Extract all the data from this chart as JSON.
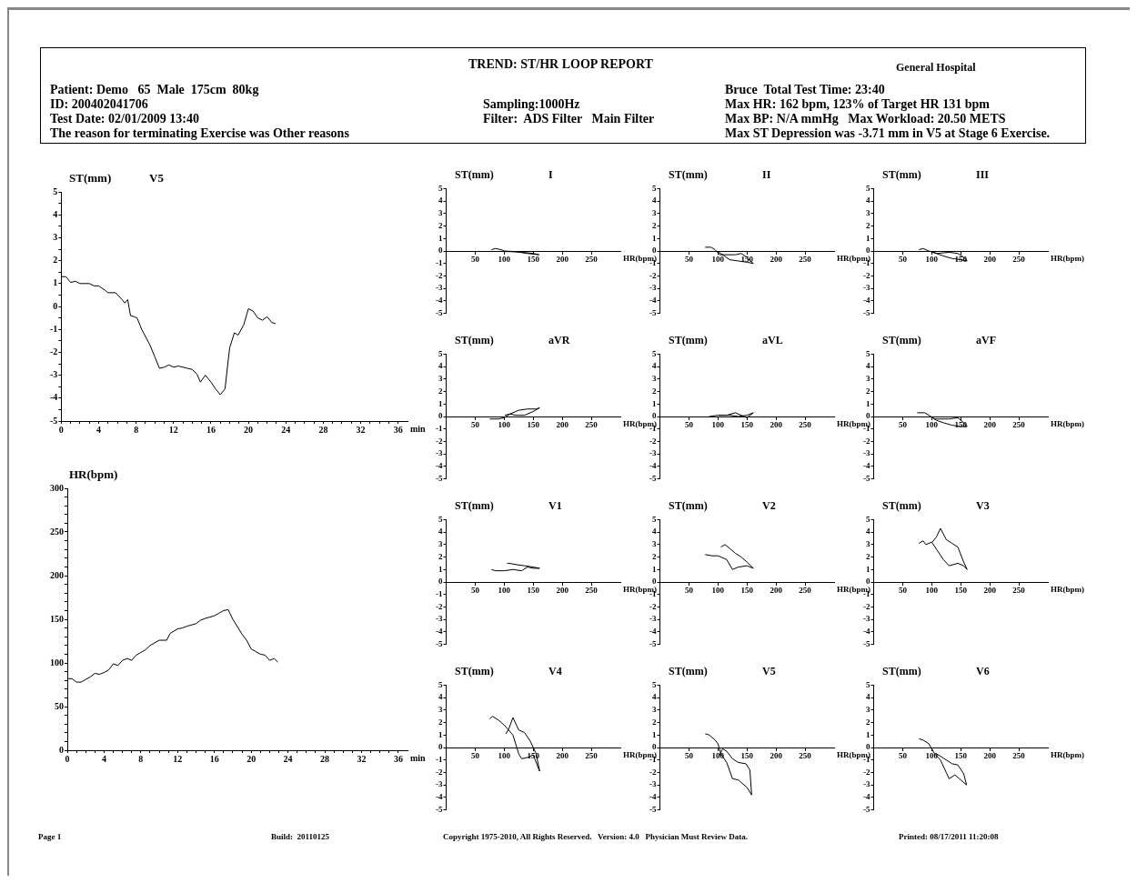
{
  "chart_data": [
    {
      "type": "other",
      "title": "TREND: ST/HR LOOP REPORT",
      "annotations": [
        "General Hospital",
        "Patient: Demo   65  Male  175cm  80kg",
        "ID: 200402041706",
        "Test Date: 02/01/2009 13:40",
        "The reason for terminating Exercise was Other reasons",
        "Sampling:1000Hz",
        "Filter:  ADS Filter   Main Filter",
        "Bruce  Total Test Time: 23:40",
        "Max HR: 162 bpm, 123% of Target HR 131 bpm",
        "Max BP: N/A mmHg   Max Workload: 20.50 METS",
        "Max ST Depression was -3.71 mm in V5 at Stage 6 Exercise."
      ]
    },
    {
      "type": "line",
      "title": "V5",
      "ylabel": "ST(mm)",
      "xlabel": "min",
      "xlim": [
        0,
        37
      ],
      "ylim": [
        -5,
        5
      ],
      "xticks": [
        0,
        {
          "value": 1,
          "label": null
        },
        {
          "value": 2,
          "label": null
        },
        {
          "value": 3,
          "label": null
        },
        4,
        {
          "value": 5,
          "label": null
        },
        {
          "value": 6,
          "label": null
        },
        {
          "value": 7,
          "label": null
        },
        8,
        {
          "value": 9,
          "label": null
        },
        {
          "value": 10,
          "label": null
        },
        {
          "value": 11,
          "label": null
        },
        12,
        {
          "value": 13,
          "label": null
        },
        {
          "value": 14,
          "label": null
        },
        {
          "value": 15,
          "label": null
        },
        16,
        {
          "value": 17,
          "label": null
        },
        {
          "value": 18,
          "label": null
        },
        {
          "value": 19,
          "label": null
        },
        20,
        {
          "value": 21,
          "label": null
        },
        {
          "value": 22,
          "label": null
        },
        {
          "value": 23,
          "label": null
        },
        24,
        {
          "value": 25,
          "label": null
        },
        {
          "value": 26,
          "label": null
        },
        {
          "value": 27,
          "label": null
        },
        28,
        {
          "value": 29,
          "label": null
        },
        {
          "value": 30,
          "label": null
        },
        {
          "value": 31,
          "label": null
        },
        32,
        {
          "value": 33,
          "label": null
        },
        {
          "value": 34,
          "label": null
        },
        {
          "value": 35,
          "label": null
        },
        36
      ],
      "yticks": [
        -5,
        {
          "value": -4.5,
          "label": null
        },
        -4,
        {
          "value": -3.5,
          "label": null
        },
        -3,
        {
          "value": -2.5,
          "label": null
        },
        -2,
        {
          "value": -1.5,
          "label": null
        },
        -1,
        {
          "value": -0.5,
          "label": null
        },
        0,
        {
          "value": 0.5,
          "label": null
        },
        1,
        {
          "value": 1.5,
          "label": null
        },
        2,
        {
          "value": 2.5,
          "label": null
        },
        3,
        {
          "value": 3.5,
          "label": null
        },
        4,
        {
          "value": 4.5,
          "label": null
        },
        5
      ],
      "series": [
        {
          "color": "#000000",
          "x": [
            0,
            0.5,
            1,
            1.5,
            2,
            3,
            3.5,
            4,
            4.7,
            5,
            5.8,
            6.5,
            6.8,
            7.1,
            7.4,
            7.8,
            8.1,
            8.6,
            9.5,
            10,
            10.5,
            11,
            11.5,
            12,
            12.5,
            13,
            13.5,
            14,
            14.5,
            14.87,
            15.4,
            16,
            16.5,
            17,
            17.5,
            17.8,
            18,
            18.5,
            18.9,
            19.5,
            20,
            20.5,
            21,
            21.5,
            22,
            22.5,
            22.9
          ],
          "values": [
            1.3,
            1.3,
            1.05,
            1.1,
            1.0,
            1.0,
            0.9,
            0.9,
            0.7,
            0.6,
            0.6,
            0.3,
            0.15,
            0.3,
            -0.4,
            -0.45,
            -0.5,
            -1.0,
            -1.7,
            -2.2,
            -2.7,
            -2.65,
            -2.55,
            -2.65,
            -2.6,
            -2.65,
            -2.7,
            -2.75,
            -2.95,
            -3.3,
            -3.0,
            -3.3,
            -3.6,
            -3.85,
            -3.6,
            -2.5,
            -1.8,
            -1.15,
            -1.25,
            -0.8,
            -0.1,
            -0.2,
            -0.5,
            -0.6,
            -0.45,
            -0.7,
            -0.75
          ]
        }
      ]
    },
    {
      "type": "line",
      "ylabel": "HR(bpm)",
      "xlabel": "min",
      "xlim": [
        0,
        37
      ],
      "ylim": [
        0,
        300
      ],
      "xticks": [
        0,
        {
          "value": 1,
          "label": null
        },
        {
          "value": 2,
          "label": null
        },
        {
          "value": 3,
          "label": null
        },
        4,
        {
          "value": 5,
          "label": null
        },
        {
          "value": 6,
          "label": null
        },
        {
          "value": 7,
          "label": null
        },
        8,
        {
          "value": 9,
          "label": null
        },
        {
          "value": 10,
          "label": null
        },
        {
          "value": 11,
          "label": null
        },
        12,
        {
          "value": 13,
          "label": null
        },
        {
          "value": 14,
          "label": null
        },
        {
          "value": 15,
          "label": null
        },
        16,
        {
          "value": 17,
          "label": null
        },
        {
          "value": 18,
          "label": null
        },
        {
          "value": 19,
          "label": null
        },
        20,
        {
          "value": 21,
          "label": null
        },
        {
          "value": 22,
          "label": null
        },
        {
          "value": 23,
          "label": null
        },
        24,
        {
          "value": 25,
          "label": null
        },
        {
          "value": 26,
          "label": null
        },
        {
          "value": 27,
          "label": null
        },
        28,
        {
          "value": 29,
          "label": null
        },
        {
          "value": 30,
          "label": null
        },
        {
          "value": 31,
          "label": null
        },
        32,
        {
          "value": 33,
          "label": null
        },
        {
          "value": 34,
          "label": null
        },
        {
          "value": 35,
          "label": null
        },
        36
      ],
      "yticks": [
        0,
        {
          "value": 10,
          "label": null
        },
        {
          "value": 20,
          "label": null
        },
        {
          "value": 30,
          "label": null
        },
        {
          "value": 40,
          "label": null
        },
        50,
        {
          "value": 60,
          "label": null
        },
        {
          "value": 70,
          "label": null
        },
        {
          "value": 80,
          "label": null
        },
        {
          "value": 90,
          "label": null
        },
        100,
        {
          "value": 110,
          "label": null
        },
        {
          "value": 120,
          "label": null
        },
        {
          "value": 130,
          "label": null
        },
        {
          "value": 140,
          "label": null
        },
        150,
        {
          "value": 160,
          "label": null
        },
        {
          "value": 170,
          "label": null
        },
        {
          "value": 180,
          "label": null
        },
        {
          "value": 190,
          "label": null
        },
        200,
        {
          "value": 210,
          "label": null
        },
        {
          "value": 220,
          "label": null
        },
        {
          "value": 230,
          "label": null
        },
        {
          "value": 240,
          "label": null
        },
        250,
        {
          "value": 260,
          "label": null
        },
        {
          "value": 270,
          "label": null
        },
        {
          "value": 280,
          "label": null
        },
        {
          "value": 290,
          "label": null
        },
        300
      ],
      "series": [
        {
          "color": "#000000",
          "x": [
            0,
            0.5,
            1,
            1.5,
            2,
            2.5,
            3,
            3.5,
            4,
            4.5,
            5,
            5.5,
            6,
            6.5,
            7,
            7.5,
            8,
            8.5,
            9,
            9.5,
            10,
            10.8,
            11.2,
            12,
            12.5,
            13,
            14,
            14.5,
            15,
            16,
            16.5,
            17,
            17.5,
            18,
            19,
            19.5,
            20,
            20.5,
            21,
            21.5,
            22,
            22.5,
            22.9
          ],
          "values": [
            82,
            82,
            78,
            78,
            81,
            84,
            88,
            87,
            89,
            92,
            99,
            97,
            103,
            105,
            103,
            109,
            112,
            115,
            120,
            123,
            126,
            126,
            134,
            139,
            140,
            142,
            145,
            149,
            151,
            154,
            157,
            160,
            161,
            150,
            133,
            126,
            116,
            113,
            110,
            109,
            103,
            105,
            101
          ]
        }
      ]
    },
    {
      "type": "line",
      "title": "I",
      "ylabel": "ST(mm)",
      "xlabel": "HR(bpm)",
      "xlim": [
        0,
        300
      ],
      "ylim": [
        -5,
        5
      ],
      "xticks": [
        50,
        100,
        150,
        200,
        250
      ],
      "yticks": [
        -5,
        -4,
        -3,
        -2,
        -1,
        0,
        1,
        2,
        3,
        4,
        5
      ],
      "series": [
        {
          "color": "#000000",
          "x": [
            78,
            85,
            95,
            100,
            120,
            140,
            160,
            150,
            130,
            110,
            101
          ],
          "values": [
            0.1,
            0.2,
            0.1,
            0,
            -0.05,
            -0.2,
            -0.3,
            -0.2,
            -0.1,
            -0.05,
            -0.05
          ]
        }
      ]
    },
    {
      "type": "line",
      "title": "II",
      "ylabel": "ST(mm)",
      "xlabel": "HR(bpm)",
      "xlim": [
        0,
        300
      ],
      "ylim": [
        -5,
        5
      ],
      "xticks": [
        50,
        100,
        150,
        200,
        250
      ],
      "yticks": [
        -5,
        -4,
        -3,
        -2,
        -1,
        0,
        1,
        2,
        3,
        4,
        5
      ],
      "series": [
        {
          "color": "#000000",
          "x": [
            78,
            88,
            95,
            103,
            115,
            130,
            140,
            150,
            158,
            161,
            150,
            135,
            120,
            108,
            101
          ],
          "values": [
            0.3,
            0.3,
            0.1,
            -0.3,
            -0.3,
            -0.3,
            -0.2,
            -0.5,
            -0.9,
            -1.0,
            -0.9,
            -0.8,
            -0.7,
            -0.3,
            -0.1
          ]
        }
      ]
    },
    {
      "type": "line",
      "title": "III",
      "ylabel": "ST(mm)",
      "xlabel": "HR(bpm)",
      "xlim": [
        0,
        300
      ],
      "ylim": [
        -5,
        5
      ],
      "xticks": [
        50,
        100,
        150,
        200,
        250
      ],
      "yticks": [
        -5,
        -4,
        -3,
        -2,
        -1,
        0,
        1,
        2,
        3,
        4,
        5
      ],
      "series": [
        {
          "color": "#000000",
          "x": [
            78,
            85,
            95,
            110,
            130,
            145,
            155,
            161,
            150,
            135,
            120,
            108,
            101
          ],
          "values": [
            0.1,
            0.2,
            0,
            -0.2,
            -0.1,
            -0.2,
            -0.5,
            -0.8,
            -0.7,
            -0.6,
            -0.4,
            -0.2,
            -0.1
          ]
        }
      ]
    },
    {
      "type": "line",
      "title": "aVR",
      "ylabel": "ST(mm)",
      "xlabel": "HR(bpm)",
      "xlim": [
        0,
        300
      ],
      "ylim": [
        -5,
        5
      ],
      "xticks": [
        50,
        100,
        150,
        200,
        250
      ],
      "yticks": [
        -5,
        -4,
        -3,
        -2,
        -1,
        0,
        1,
        2,
        3,
        4,
        5
      ],
      "series": [
        {
          "color": "#000000",
          "x": [
            75,
            90,
            100,
            110,
            125,
            140,
            155,
            161,
            150,
            135,
            120,
            110,
            101
          ],
          "values": [
            -0.2,
            -0.2,
            -0.1,
            0.2,
            0.5,
            0.6,
            0.6,
            0.7,
            0.4,
            0.1,
            0.1,
            0.2,
            0.1
          ]
        }
      ]
    },
    {
      "type": "line",
      "title": "aVL",
      "ylabel": "ST(mm)",
      "xlabel": "HR(bpm)",
      "xlim": [
        0,
        300
      ],
      "ylim": [
        -5,
        5
      ],
      "xticks": [
        50,
        100,
        150,
        200,
        250
      ],
      "yticks": [
        -5,
        -4,
        -3,
        -2,
        -1,
        0,
        1,
        2,
        3,
        4,
        5
      ],
      "series": [
        {
          "color": "#000000",
          "x": [
            85,
            100,
            115,
            130,
            140,
            150,
            161,
            150,
            135,
            120,
            101
          ],
          "values": [
            0,
            0.1,
            0.1,
            0.3,
            0.1,
            -0.1,
            0.3,
            0.1,
            0,
            0.1,
            0.1
          ]
        }
      ]
    },
    {
      "type": "line",
      "title": "aVF",
      "ylabel": "ST(mm)",
      "xlabel": "HR(bpm)",
      "xlim": [
        0,
        300
      ],
      "ylim": [
        -5,
        5
      ],
      "xticks": [
        50,
        100,
        150,
        200,
        250
      ],
      "yticks": [
        -5,
        -4,
        -3,
        -2,
        -1,
        0,
        1,
        2,
        3,
        4,
        5
      ],
      "series": [
        {
          "color": "#000000",
          "x": [
            75,
            88,
            95,
            105,
            115,
            130,
            145,
            155,
            161,
            150,
            135,
            120,
            108,
            101
          ],
          "values": [
            0.3,
            0.3,
            0.1,
            -0.2,
            -0.2,
            -0.2,
            -0.1,
            -0.5,
            -0.8,
            -0.8,
            -0.7,
            -0.5,
            -0.3,
            -0.1
          ]
        }
      ]
    },
    {
      "type": "line",
      "title": "V1",
      "ylabel": "ST(mm)",
      "xlabel": "HR(bpm)",
      "xlim": [
        0,
        300
      ],
      "ylim": [
        -5,
        5
      ],
      "xticks": [
        50,
        100,
        150,
        200,
        250
      ],
      "yticks": [
        -5,
        -4,
        -3,
        -2,
        -1,
        0,
        1,
        2,
        3,
        4,
        5
      ],
      "series": [
        {
          "color": "#000000",
          "x": [
            78,
            85,
            100,
            115,
            130,
            140,
            150,
            161,
            150,
            135,
            120,
            108,
            105
          ],
          "values": [
            1.0,
            0.9,
            0.9,
            1.0,
            0.9,
            1.2,
            1.1,
            1.1,
            1.2,
            1.3,
            1.4,
            1.5,
            1.5
          ]
        }
      ]
    },
    {
      "type": "line",
      "title": "V2",
      "ylabel": "ST(mm)",
      "xlabel": "HR(bpm)",
      "xlim": [
        0,
        300
      ],
      "ylim": [
        -5,
        5
      ],
      "xticks": [
        50,
        100,
        150,
        200,
        250
      ],
      "yticks": [
        -5,
        -4,
        -3,
        -2,
        -1,
        0,
        1,
        2,
        3,
        4,
        5
      ],
      "series": [
        {
          "color": "#000000",
          "x": [
            78,
            90,
            100,
            115,
            125,
            135,
            150,
            161,
            150,
            140,
            130,
            120,
            112,
            105
          ],
          "values": [
            2.2,
            2.1,
            2.1,
            1.8,
            1.0,
            1.2,
            1.3,
            1.1,
            1.6,
            2.0,
            2.3,
            2.7,
            3.0,
            2.8
          ]
        }
      ]
    },
    {
      "type": "line",
      "title": "V3",
      "ylabel": "ST(mm)",
      "xlabel": "HR(bpm)",
      "xlim": [
        0,
        300
      ],
      "ylim": [
        -5,
        5
      ],
      "xticks": [
        50,
        100,
        150,
        200,
        250
      ],
      "yticks": [
        -5,
        -4,
        -3,
        -2,
        -1,
        0,
        1,
        2,
        3,
        4,
        5
      ],
      "series": [
        {
          "color": "#000000",
          "x": [
            78,
            85,
            90,
            100,
            110,
            120,
            130,
            145,
            155,
            161,
            155,
            145,
            135,
            125,
            115,
            108,
            101
          ],
          "values": [
            3.1,
            3.3,
            3.0,
            3.2,
            2.5,
            1.8,
            1.3,
            1.5,
            1.3,
            1.0,
            1.6,
            2.8,
            3.1,
            3.4,
            4.3,
            3.6,
            3.2
          ]
        }
      ]
    },
    {
      "type": "line",
      "title": "V4",
      "ylabel": "ST(mm)",
      "xlabel": "HR(bpm)",
      "xlim": [
        0,
        300
      ],
      "ylim": [
        -5,
        5
      ],
      "xticks": [
        50,
        100,
        150,
        200,
        250
      ],
      "yticks": [
        -5,
        -4,
        -3,
        -2,
        -1,
        0,
        1,
        2,
        3,
        4,
        5
      ],
      "series": [
        {
          "color": "#000000",
          "x": [
            75,
            80,
            90,
            100,
            115,
            125,
            130,
            140,
            150,
            161,
            155,
            145,
            135,
            125,
            115,
            108,
            103
          ],
          "values": [
            2.3,
            2.5,
            2.2,
            1.8,
            1.0,
            -0.5,
            -0.9,
            -0.8,
            -0.6,
            -1.9,
            -0.5,
            0.5,
            1.2,
            1.4,
            2.4,
            1.5,
            1.1
          ]
        }
      ]
    },
    {
      "type": "line",
      "title": "V5",
      "ylabel": "ST(mm)",
      "xlabel": "HR(bpm)",
      "xlim": [
        0,
        300
      ],
      "ylim": [
        -5,
        5
      ],
      "xticks": [
        50,
        100,
        150,
        200,
        250
      ],
      "yticks": [
        -5,
        -4,
        -3,
        -2,
        -1,
        0,
        1,
        2,
        3,
        4,
        5
      ],
      "series": [
        {
          "color": "#000000",
          "x": [
            78,
            85,
            95,
            100,
            105,
            115,
            125,
            135,
            150,
            158,
            155,
            148,
            135,
            125,
            115,
            108,
            101
          ],
          "values": [
            1.1,
            1.0,
            0.6,
            0.3,
            -0.5,
            -1.2,
            -2.5,
            -2.6,
            -3.2,
            -3.8,
            -1.8,
            -1.3,
            -1.2,
            -0.9,
            -0.3,
            -0.1,
            -0.75
          ]
        }
      ]
    },
    {
      "type": "line",
      "title": "V6",
      "ylabel": "ST(mm)",
      "xlabel": "HR(bpm)",
      "xlim": [
        0,
        300
      ],
      "ylim": [
        -5,
        5
      ],
      "xticks": [
        50,
        100,
        150,
        200,
        250
      ],
      "yticks": [
        -5,
        -4,
        -3,
        -2,
        -1,
        0,
        1,
        2,
        3,
        4,
        5
      ],
      "series": [
        {
          "color": "#000000",
          "x": [
            78,
            85,
            95,
            105,
            115,
            125,
            130,
            140,
            150,
            160,
            155,
            145,
            135,
            125,
            115,
            108
          ],
          "values": [
            0.7,
            0.6,
            0.3,
            -0.5,
            -1.0,
            -2.0,
            -2.5,
            -2.2,
            -2.6,
            -3.0,
            -2.1,
            -1.4,
            -1.3,
            -1.0,
            -0.7,
            -0.5
          ]
        }
      ]
    },
    {
      "type": "other",
      "annotations": [
        "Page 1",
        "Build:  20110125",
        "Copyright 1975-2010, All Rights Reserved.   Version: 4.0   Physician Must Review Data.",
        "Printed: 08/17/2011 11:20:08"
      ]
    }
  ]
}
